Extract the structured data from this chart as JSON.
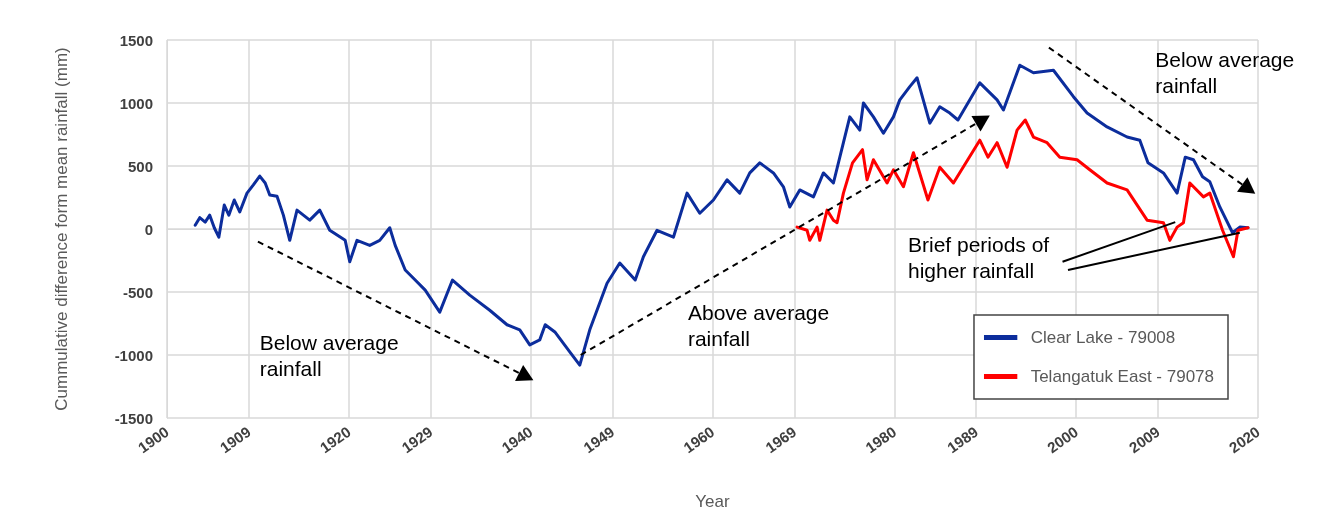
{
  "chart_data": {
    "type": "line",
    "xlabel": "Year",
    "ylabel": "Cummulative difference form mean rainfall (mm)",
    "xlim": [
      1900,
      2020
    ],
    "xticks": [
      1900,
      1909,
      1920,
      1929,
      1940,
      1949,
      1960,
      1969,
      1980,
      1989,
      2000,
      2009,
      2020
    ],
    "ylim": [
      -1500,
      1500
    ],
    "yticks": [
      -1500,
      -1000,
      -500,
      0,
      500,
      1000,
      1500
    ],
    "grid": true,
    "legend": "bottom right",
    "marker": "none",
    "line_style": "solid",
    "series": [
      {
        "name": "Clear Lake - 79008",
        "color": "#0c2d9c",
        "x": [
          1903.1,
          1903.6,
          1904.2,
          1904.7,
          1905.2,
          1905.7,
          1906.3,
          1906.8,
          1907.4,
          1908.0,
          1908.8,
          1909.5,
          1910.2,
          1910.8,
          1911.3,
          1912.1,
          1912.8,
          1913.5,
          1914.3,
          1915.0,
          1915.7,
          1916.8,
          1917.9,
          1919.6,
          1920.1,
          1920.9,
          1922.3,
          1923.4,
          1924.5,
          1925.1,
          1926.2,
          1927.3,
          1928.4,
          1930.0,
          1931.4,
          1933.3,
          1935.5,
          1937.4,
          1938.8,
          1939.9,
          1941.0,
          1941.6,
          1942.7,
          1944.3,
          1945.4,
          1946.5,
          1948.4,
          1949.8,
          1951.5,
          1952.4,
          1953.9,
          1955.7,
          1957.2,
          1958.6,
          1960.1,
          1961.6,
          1963.0,
          1964.1,
          1965.2,
          1966.7,
          1967.8,
          1968.5,
          1969.6,
          1971.1,
          1972.2,
          1973.3,
          1974.4,
          1975.1,
          1976.2,
          1976.6,
          1977.7,
          1978.8,
          1979.9,
          1980.6,
          1981.7,
          1982.5,
          1983.9,
          1985.0,
          1986.1,
          1987.0,
          1989.4,
          1991.3,
          1992.0,
          1993.8,
          1995.3,
          1997.5,
          1999.7,
          2001.2,
          2003.4,
          2005.6,
          2007.0,
          2007.9,
          2009.6,
          2011.1,
          2012.0,
          2012.9,
          2013.9,
          2014.7,
          2015.8,
          2017.2,
          2018.0,
          2018.9
        ],
        "values": [
          30,
          90,
          55,
          110,
          10,
          -65,
          190,
          110,
          230,
          135,
          285,
          350,
          420,
          365,
          270,
          260,
          110,
          -90,
          150,
          110,
          70,
          150,
          -10,
          -90,
          -260,
          -90,
          -130,
          -90,
          10,
          -130,
          -325,
          -405,
          -485,
          -660,
          -405,
          -525,
          -645,
          -760,
          -800,
          -920,
          -880,
          -760,
          -820,
          -975,
          -1080,
          -800,
          -430,
          -270,
          -405,
          -220,
          -10,
          -65,
          285,
          125,
          230,
          390,
          285,
          445,
          525,
          445,
          335,
          175,
          310,
          255,
          445,
          365,
          685,
          890,
          785,
          1000,
          890,
          760,
          890,
          1025,
          1130,
          1200,
          840,
          970,
          920,
          865,
          1160,
          1025,
          945,
          1300,
          1240,
          1260,
          1050,
          920,
          810,
          730,
          705,
          525,
          445,
          285,
          570,
          550,
          415,
          375,
          175,
          -30,
          15,
          10
        ]
      },
      {
        "name": "Telangatuk East - 79078",
        "color": "#ff0000",
        "x": [
          1969.3,
          1970.4,
          1970.7,
          1971.5,
          1971.8,
          1972.6,
          1973.3,
          1973.7,
          1974.4,
          1975.4,
          1976.5,
          1977.0,
          1977.7,
          1979.2,
          1979.9,
          1981.0,
          1982.1,
          1983.7,
          1985.0,
          1986.5,
          1989.4,
          1990.3,
          1991.3,
          1992.4,
          1993.5,
          1994.4,
          1995.3,
          1996.8,
          1998.2,
          2000.1,
          2001.5,
          2003.4,
          2005.6,
          2007.8,
          2009.6,
          2010.3,
          2011.1,
          2011.8,
          2012.5,
          2014.0,
          2014.7,
          2016.1,
          2017.3,
          2017.8,
          2018.9
        ],
        "values": [
          15,
          -10,
          -90,
          15,
          -90,
          150,
          70,
          50,
          285,
          525,
          630,
          390,
          550,
          365,
          470,
          335,
          605,
          230,
          490,
          365,
          705,
          570,
          685,
          490,
          785,
          865,
          730,
          685,
          570,
          550,
          470,
          365,
          310,
          70,
          50,
          -90,
          15,
          50,
          365,
          255,
          285,
          -10,
          -220,
          -10,
          10
        ]
      }
    ],
    "annotations": [
      "Below average rainfall",
      "Above average rainfall",
      "Below average rainfall",
      {
        "text": "Brief periods of higher rainfall",
        "x": 2010.9,
        "y": 55
      }
    ]
  }
}
